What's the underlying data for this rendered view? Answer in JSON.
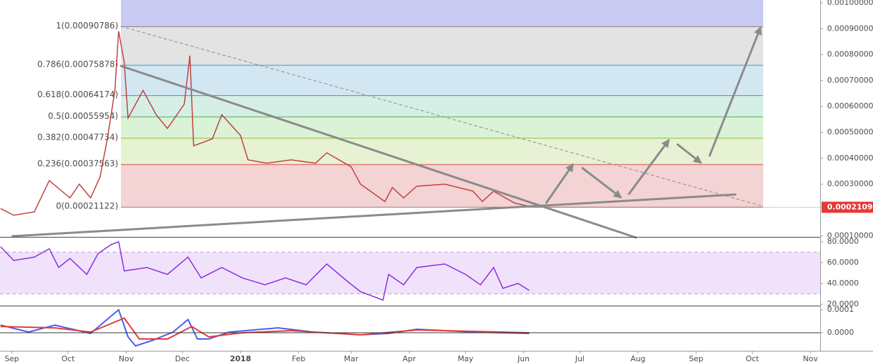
{
  "chart_data": [
    {
      "type": "line",
      "color": "#c0403f",
      "xlim": [
        -6.3,
        431.2
      ],
      "xticks": [
        {
          "value": 0,
          "label": "Sep"
        },
        {
          "value": 30,
          "label": "Oct"
        },
        {
          "value": 61,
          "label": "Nov"
        },
        {
          "value": 91,
          "label": "Dec"
        },
        {
          "value": 122,
          "label": "2018"
        },
        {
          "value": 153,
          "label": "Feb"
        },
        {
          "value": 181,
          "label": "Mar"
        },
        {
          "value": 212,
          "label": "Apr"
        },
        {
          "value": 242,
          "label": "May"
        },
        {
          "value": 273,
          "label": "Jun"
        },
        {
          "value": 303,
          "label": "Jul"
        },
        {
          "value": 334,
          "label": "Aug"
        },
        {
          "value": 365,
          "label": "Sep"
        },
        {
          "value": 395,
          "label": "Oct"
        },
        {
          "value": 426,
          "label": "Nov"
        }
      ],
      "ylim": [
        9.93e-05,
        0.0010107
      ],
      "yticks": [
        {
          "value": 0.001,
          "label": "0.00100000"
        },
        {
          "value": 0.0009,
          "label": "0.00090000"
        },
        {
          "value": 0.0008,
          "label": "0.00080000"
        },
        {
          "value": 0.0007,
          "label": "0.00070000"
        },
        {
          "value": 0.0006,
          "label": "0.00060000"
        },
        {
          "value": 0.0005,
          "label": "0.00050000"
        },
        {
          "value": 0.0004,
          "label": "0.00040000"
        },
        {
          "value": 0.0003,
          "label": "0.00030000"
        },
        {
          "value": 0.0001,
          "label": "0.00010000"
        }
      ],
      "last_price": 0.00021092,
      "fib_levels": [
        {
          "label": "1(0.00090786)",
          "value": 0.00090786,
          "color": "#808080",
          "fill": "#e3e3e3"
        },
        {
          "label": "0.786(0.00075878)",
          "value": 0.00075878,
          "color": "#2f9bd0",
          "fill": "#d3e7f3"
        },
        {
          "label": "0.618(0.00064174)",
          "value": 0.00064174,
          "color": "#2aa79b",
          "fill": "#d5efe6"
        },
        {
          "label": "0.5(0.00055954)",
          "value": 0.00055954,
          "color": "#4caf50",
          "fill": "#daf2d6"
        },
        {
          "label": "0.382(0.00047734)",
          "value": 0.00047734,
          "color": "#98b534",
          "fill": "#e6f2d3"
        },
        {
          "label": "0.236(0.00037563)",
          "value": 0.00037563,
          "color": "#dd4545",
          "fill": "#f3d3d3"
        },
        {
          "label": "0(0.00021122)",
          "value": 0.00021122,
          "color": "#808080"
        }
      ],
      "x": [
        -6,
        1,
        12,
        20,
        31,
        36,
        42,
        47,
        51,
        55,
        57,
        60,
        62,
        70,
        77,
        83,
        92,
        95,
        97,
        107,
        112,
        122,
        126,
        136,
        149,
        162,
        168,
        181,
        186,
        199,
        203,
        209,
        216,
        231,
        246,
        251,
        257,
        268,
        276
      ],
      "values": [
        0.000206,
        0.00018,
        0.000193,
        0.000314,
        0.000247,
        0.0003,
        0.000247,
        0.000327,
        0.000475,
        0.000662,
        0.00089,
        0.000769,
        0.000555,
        0.000662,
        0.000568,
        0.000515,
        0.000609,
        0.000796,
        0.000448,
        0.000475,
        0.000568,
        0.000488,
        0.000394,
        0.000381,
        0.000394,
        0.000381,
        0.000421,
        0.000367,
        0.0003,
        0.000233,
        0.000287,
        0.000247,
        0.000292,
        0.0003,
        0.000273,
        0.000233,
        0.000273,
        0.000228,
        0.000214
      ]
    },
    {
      "type": "line",
      "color": "#8a2be2",
      "xlim": [
        -6.3,
        431.2
      ],
      "ylim": [
        18.7,
        84
      ],
      "yticks": [
        {
          "value": 80,
          "label": "80.0000"
        },
        {
          "value": 60,
          "label": "60.0000"
        },
        {
          "value": 40,
          "label": "40.0000"
        },
        {
          "value": 20,
          "label": "20.0000"
        }
      ],
      "x": [
        -6,
        1,
        12,
        20,
        25,
        31,
        40,
        46,
        53,
        57,
        60,
        72,
        83,
        94,
        101,
        112,
        123,
        135,
        146,
        157,
        168,
        179,
        186,
        198,
        201,
        209,
        216,
        231,
        242,
        250,
        257,
        262,
        270,
        276
      ],
      "values": [
        75.3,
        62,
        65.3,
        73.3,
        55.3,
        64,
        48.7,
        68.7,
        77.3,
        80,
        52,
        55.3,
        48.7,
        65.3,
        45.3,
        55.3,
        45.3,
        38.7,
        45.3,
        38.7,
        58.7,
        42,
        32,
        24,
        48.7,
        38.7,
        55.3,
        58.7,
        48.7,
        38.7,
        55.3,
        35.3,
        40,
        33.3
      ]
    },
    {
      "type": "line",
      "xlim": [
        -6.3,
        431.2
      ],
      "ylim": [
        -7.88e-05,
        0.000115
      ],
      "yticks": [
        {
          "value": 0.0001,
          "label": "0.0001"
        },
        {
          "value": 0,
          "label": "0.0000"
        }
      ],
      "series": [
        {
          "color": "#4a5cf0",
          "x": [
            -6,
            9,
            23,
            42,
            53,
            57,
            62,
            66,
            75,
            86,
            94,
            99,
            105,
            116,
            142,
            161,
            186,
            201,
            216,
            246,
            276
          ],
          "values": [
            3.33e-05,
            3e-06,
            3.33e-05,
            -3e-06,
            7.27e-05,
            0.0001,
            -1.82e-05,
            -5.76e-05,
            -3.33e-05,
            3e-06,
            5.76e-05,
            -2.73e-05,
            -2.73e-05,
            3e-06,
            2.12e-05,
            3e-06,
            -9.1e-06,
            -3e-06,
            1.52e-05,
            3e-06,
            -3e-06
          ]
        },
        {
          "color": "#e53935",
          "x": [
            -6,
            23,
            42,
            60,
            68,
            83,
            96,
            105,
            123,
            149,
            186,
            216,
            276
          ],
          "values": [
            2.73e-05,
            2.12e-05,
            3e-06,
            6.36e-05,
            -2.73e-05,
            -2.73e-05,
            2.73e-05,
            -1.82e-05,
            0,
            9.1e-06,
            -9.1e-06,
            1.21e-05,
            0
          ]
        }
      ]
    }
  ]
}
